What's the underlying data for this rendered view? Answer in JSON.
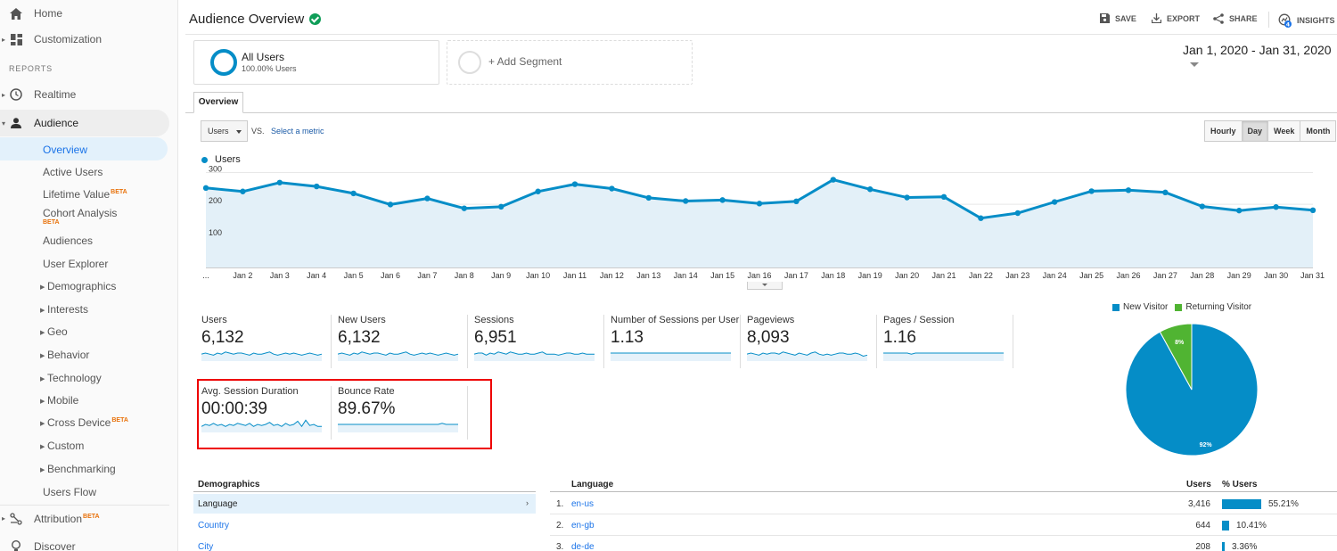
{
  "sidebar": {
    "home": "Home",
    "customization": "Customization",
    "reports_header": "REPORTS",
    "realtime": "Realtime",
    "audience": "Audience",
    "audience_items": [
      {
        "label": "Overview"
      },
      {
        "label": "Active Users"
      },
      {
        "label": "Lifetime Value",
        "badge": "BETA"
      },
      {
        "label": "Cohort Analysis",
        "badge": "BETA"
      },
      {
        "label": "Audiences"
      },
      {
        "label": "User Explorer"
      },
      {
        "label": "Demographics"
      },
      {
        "label": "Interests"
      },
      {
        "label": "Geo"
      },
      {
        "label": "Behavior"
      },
      {
        "label": "Technology"
      },
      {
        "label": "Mobile"
      },
      {
        "label": "Cross Device",
        "badge": "BETA"
      },
      {
        "label": "Custom"
      },
      {
        "label": "Benchmarking"
      },
      {
        "label": "Users Flow"
      }
    ],
    "attribution": "Attribution",
    "attribution_badge": "BETA",
    "discover": "Discover"
  },
  "header": {
    "title": "Audience Overview",
    "save": "SAVE",
    "export": "EXPORT",
    "share": "SHARE",
    "insights": "INSIGHTS",
    "insights_count": "4"
  },
  "segments": {
    "all_users": "All Users",
    "all_users_sub": "100.00% Users",
    "add_segment": "+ Add Segment"
  },
  "date_range": "Jan 1, 2020 - Jan 31, 2020",
  "tabs": {
    "overview": "Overview"
  },
  "controls": {
    "metric": "Users",
    "vs": "VS.",
    "select_metric": "Select a metric",
    "granularity": [
      "Hourly",
      "Day",
      "Week",
      "Month"
    ],
    "selected_granularity": "Day"
  },
  "chart_data": [
    {
      "type": "area",
      "series": [
        {
          "name": "Users",
          "values": [
            250,
            239,
            267,
            255,
            233,
            198,
            217,
            186,
            191,
            239,
            262,
            248,
            219,
            209,
            212,
            201,
            208,
            276,
            246,
            220,
            222,
            155,
            171,
            206,
            240,
            243,
            236,
            192,
            179,
            190,
            180
          ]
        }
      ],
      "x": [
        "...",
        "Jan 2",
        "Jan 3",
        "Jan 4",
        "Jan 5",
        "Jan 6",
        "Jan 7",
        "Jan 8",
        "Jan 9",
        "Jan 10",
        "Jan 11",
        "Jan 12",
        "Jan 13",
        "Jan 14",
        "Jan 15",
        "Jan 16",
        "Jan 17",
        "Jan 18",
        "Jan 19",
        "Jan 20",
        "Jan 21",
        "Jan 22",
        "Jan 23",
        "Jan 24",
        "Jan 25",
        "Jan 26",
        "Jan 27",
        "Jan 28",
        "Jan 29",
        "Jan 30",
        "Jan 31"
      ],
      "yticks": [
        100,
        200,
        300
      ],
      "ylim": [
        0,
        300
      ],
      "grid": true,
      "color": "#058dc7"
    },
    {
      "type": "pie",
      "categories": [
        "New Visitor",
        "Returning Visitor"
      ],
      "values": [
        92,
        8
      ],
      "labels": [
        "92%",
        "8%"
      ],
      "colors": [
        "#058dc7",
        "#50b432"
      ],
      "legend": "top"
    }
  ],
  "metrics": [
    {
      "label": "Users",
      "value": "6,132",
      "spark": [
        5,
        6,
        5,
        4,
        6,
        5,
        7,
        6,
        5,
        6,
        6,
        5,
        4,
        6,
        5,
        5,
        6,
        7,
        5,
        4,
        5,
        6,
        5,
        6,
        5,
        4,
        5,
        6,
        5,
        4,
        5
      ]
    },
    {
      "label": "New Users",
      "value": "6,132",
      "spark": [
        5,
        6,
        5,
        4,
        6,
        5,
        7,
        6,
        5,
        6,
        6,
        5,
        4,
        6,
        5,
        5,
        6,
        7,
        5,
        4,
        5,
        6,
        5,
        6,
        5,
        4,
        5,
        6,
        5,
        4,
        5
      ]
    },
    {
      "label": "Sessions",
      "value": "6,951",
      "spark": [
        5,
        6,
        6,
        4,
        6,
        5,
        7,
        6,
        5,
        7,
        6,
        5,
        5,
        6,
        5,
        5,
        6,
        7,
        5,
        5,
        5,
        4,
        5,
        6,
        6,
        5,
        5,
        6,
        5,
        5,
        5
      ]
    },
    {
      "label": "Number of Sessions per User",
      "value": "1.13",
      "spark": [
        6,
        6,
        6,
        6,
        6,
        6,
        6,
        6,
        6,
        6,
        6,
        6,
        6,
        6,
        6,
        6,
        6,
        6,
        6,
        6,
        6,
        6,
        6,
        6,
        6,
        6,
        6,
        6,
        6,
        6,
        6
      ]
    },
    {
      "label": "Pageviews",
      "value": "8,093",
      "spark": [
        5,
        6,
        5,
        4,
        6,
        5,
        6,
        6,
        5,
        7,
        6,
        5,
        4,
        6,
        5,
        4,
        6,
        7,
        5,
        4,
        5,
        4,
        5,
        6,
        6,
        5,
        5,
        6,
        5,
        3,
        4
      ]
    },
    {
      "label": "Pages / Session",
      "value": "1.16",
      "spark": [
        6,
        6,
        6,
        6,
        6,
        6,
        6,
        5,
        6,
        6,
        6,
        6,
        6,
        6,
        6,
        6,
        6,
        6,
        6,
        6,
        6,
        6,
        6,
        6,
        6,
        6,
        6,
        6,
        6,
        6,
        6
      ]
    },
    {
      "label": "Avg. Session Duration",
      "value": "00:00:39",
      "spark": [
        4,
        6,
        5,
        7,
        5,
        6,
        4,
        6,
        5,
        7,
        6,
        5,
        7,
        4,
        6,
        5,
        6,
        8,
        5,
        6,
        4,
        7,
        5,
        6,
        9,
        4,
        10,
        5,
        6,
        4,
        4
      ]
    },
    {
      "label": "Bounce Rate",
      "value": "89.67%",
      "spark": [
        6,
        6,
        6,
        6,
        6,
        6,
        6,
        6,
        6,
        6,
        6,
        6,
        6,
        6,
        6,
        6,
        6,
        6,
        6,
        6,
        6,
        6,
        6,
        6,
        6,
        6,
        7,
        6,
        6,
        6,
        6
      ]
    }
  ],
  "demographics": {
    "header": "Demographics",
    "items": [
      "Language",
      "Country",
      "City"
    ]
  },
  "language_table": {
    "header": "Language",
    "users_header": "Users",
    "pct_header": "% Users",
    "rows": [
      {
        "idx": "1.",
        "code": "en-us",
        "users": "3,416",
        "pct": "55.21%",
        "frac": 0.5521
      },
      {
        "idx": "2.",
        "code": "en-gb",
        "users": "644",
        "pct": "10.41%",
        "frac": 0.1041
      },
      {
        "idx": "3.",
        "code": "de-de",
        "users": "208",
        "pct": "3.36%",
        "frac": 0.0336
      }
    ]
  }
}
